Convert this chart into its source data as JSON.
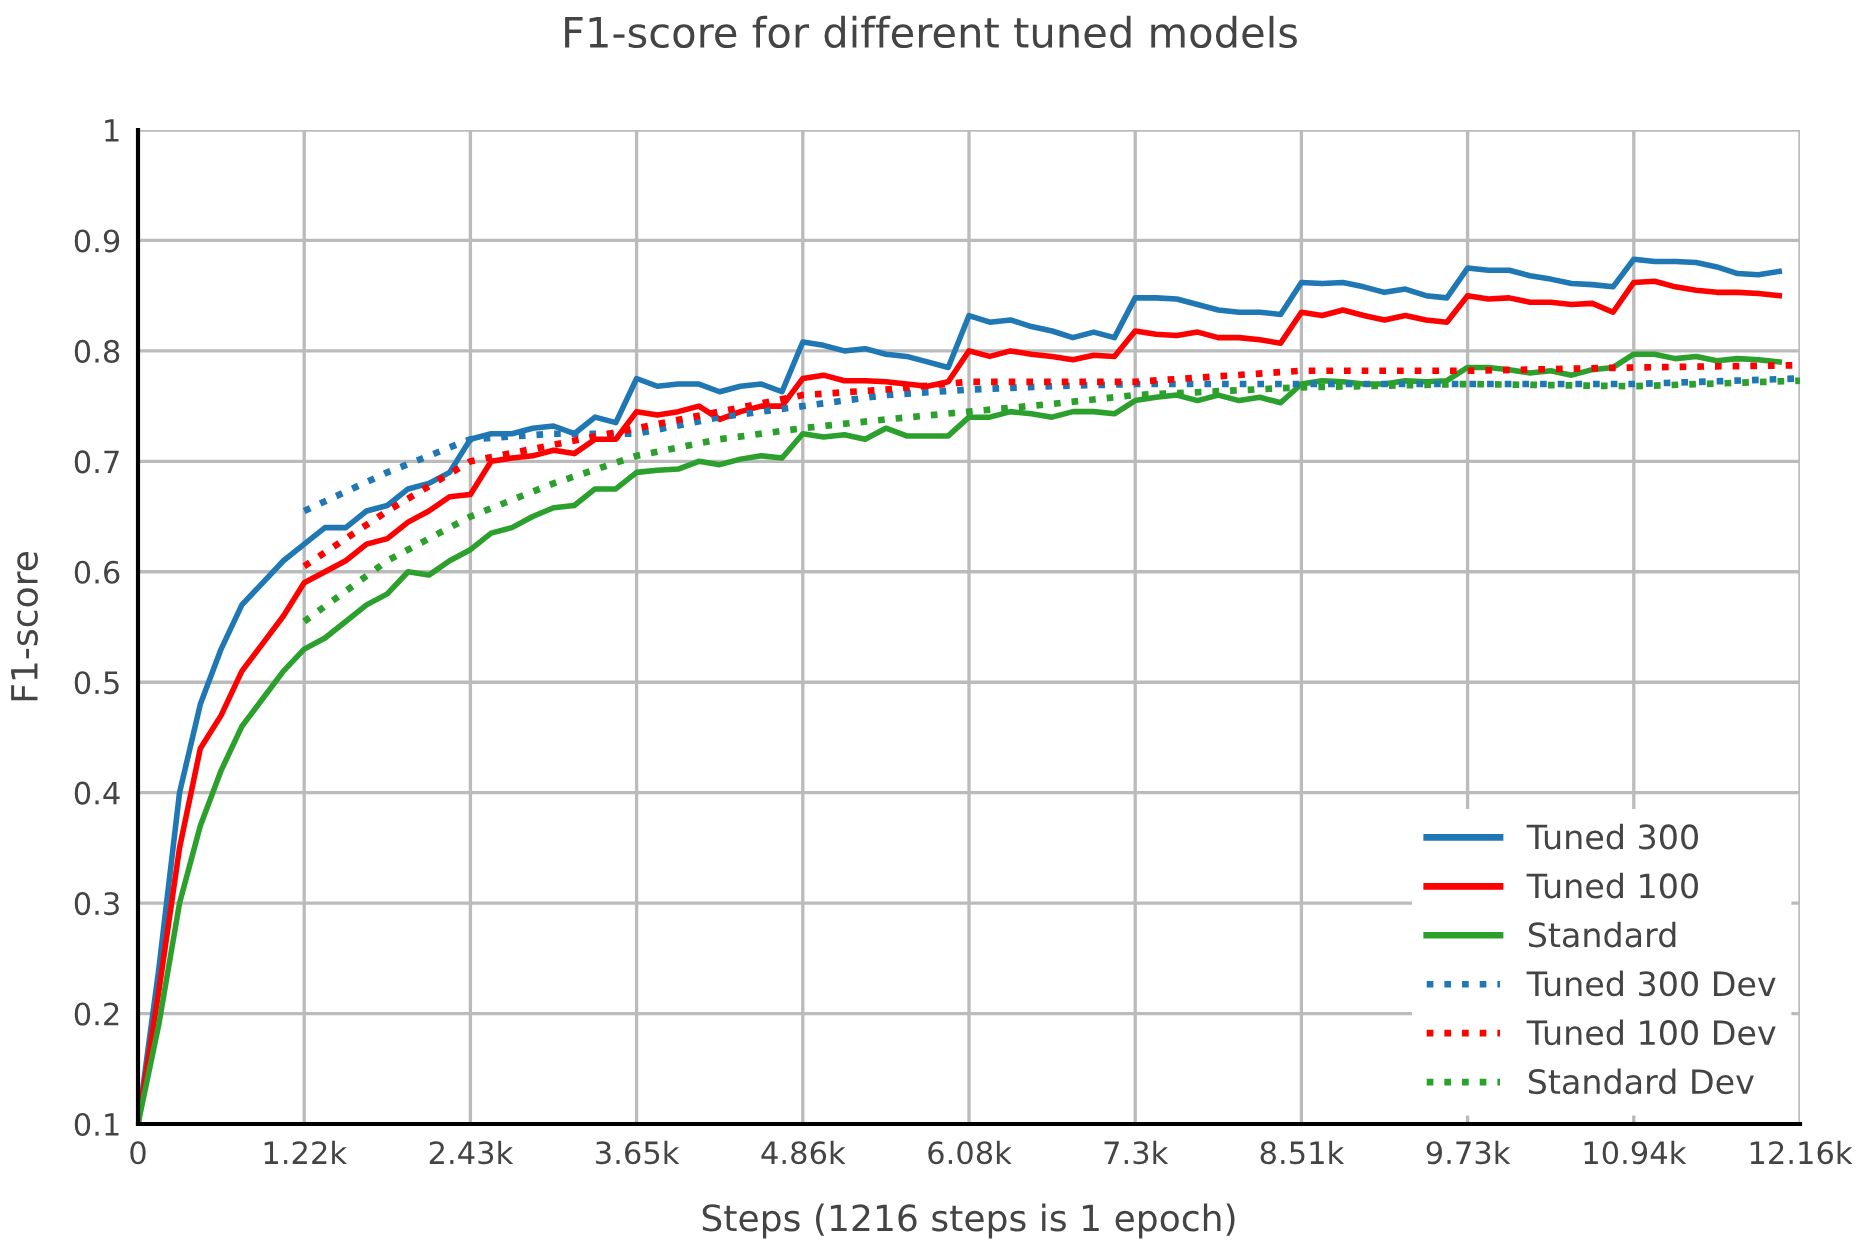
{
  "chart_data": {
    "type": "line",
    "title": "F1-score for different tuned models",
    "xlabel": "Steps (1216 steps is 1 epoch)",
    "ylabel": "F1-score",
    "x": [
      0,
      152,
      304,
      456,
      608,
      760,
      912,
      1064,
      1216,
      1368,
      1520,
      1672,
      1824,
      1976,
      2128,
      2280,
      2432,
      2584,
      2736,
      2888,
      3040,
      3192,
      3344,
      3496,
      3648,
      3800,
      3952,
      4104,
      4256,
      4408,
      4560,
      4712,
      4864,
      5016,
      5168,
      5320,
      5472,
      5624,
      5776,
      5928,
      6080,
      6232,
      6384,
      6536,
      6688,
      6840,
      6992,
      7144,
      7296,
      7448,
      7600,
      7752,
      7904,
      8056,
      8208,
      8360,
      8512,
      8664,
      8816,
      8968,
      9120,
      9272,
      9424,
      9576,
      9728,
      9880,
      10032,
      10184,
      10336,
      10488,
      10640,
      10792,
      10944,
      11096,
      11248,
      11400,
      11552,
      11704,
      11856,
      12008
    ],
    "series": [
      {
        "name": "Tuned 300",
        "color": "#1f77b4",
        "line_style": "solid",
        "values": [
          0.1,
          0.24,
          0.4,
          0.48,
          0.53,
          0.57,
          0.59,
          0.61,
          0.625,
          0.64,
          0.64,
          0.655,
          0.66,
          0.675,
          0.68,
          0.69,
          0.72,
          0.725,
          0.725,
          0.73,
          0.732,
          0.725,
          0.74,
          0.735,
          0.775,
          0.768,
          0.77,
          0.77,
          0.763,
          0.768,
          0.77,
          0.763,
          0.808,
          0.805,
          0.8,
          0.802,
          0.797,
          0.795,
          0.79,
          0.785,
          0.832,
          0.826,
          0.828,
          0.822,
          0.818,
          0.812,
          0.817,
          0.812,
          0.848,
          0.848,
          0.847,
          0.842,
          0.837,
          0.835,
          0.835,
          0.833,
          0.862,
          0.861,
          0.862,
          0.858,
          0.853,
          0.856,
          0.85,
          0.848,
          0.875,
          0.873,
          0.873,
          0.868,
          0.865,
          0.861,
          0.86,
          0.858,
          0.883,
          0.881,
          0.881,
          0.88,
          0.876,
          0.87,
          0.869,
          0.872
        ]
      },
      {
        "name": "Tuned 100",
        "color": "#ff0000",
        "line_style": "solid",
        "values": [
          0.1,
          0.22,
          0.35,
          0.44,
          0.47,
          0.51,
          0.535,
          0.56,
          0.59,
          0.6,
          0.61,
          0.625,
          0.63,
          0.645,
          0.655,
          0.668,
          0.67,
          0.7,
          0.703,
          0.705,
          0.71,
          0.707,
          0.72,
          0.72,
          0.745,
          0.742,
          0.745,
          0.75,
          0.738,
          0.745,
          0.75,
          0.75,
          0.775,
          0.778,
          0.773,
          0.773,
          0.772,
          0.77,
          0.768,
          0.772,
          0.8,
          0.795,
          0.8,
          0.797,
          0.795,
          0.792,
          0.796,
          0.795,
          0.818,
          0.815,
          0.814,
          0.817,
          0.812,
          0.812,
          0.81,
          0.807,
          0.835,
          0.832,
          0.837,
          0.832,
          0.828,
          0.832,
          0.828,
          0.826,
          0.85,
          0.847,
          0.848,
          0.844,
          0.844,
          0.842,
          0.843,
          0.835,
          0.862,
          0.863,
          0.858,
          0.855,
          0.853,
          0.853,
          0.852,
          0.85
        ]
      },
      {
        "name": "Standard",
        "color": "#2ca02c",
        "line_style": "solid",
        "values": [
          0.1,
          0.19,
          0.3,
          0.37,
          0.42,
          0.46,
          0.485,
          0.51,
          0.53,
          0.54,
          0.555,
          0.57,
          0.58,
          0.6,
          0.597,
          0.61,
          0.62,
          0.635,
          0.64,
          0.65,
          0.658,
          0.66,
          0.675,
          0.675,
          0.69,
          0.692,
          0.693,
          0.7,
          0.697,
          0.702,
          0.705,
          0.703,
          0.725,
          0.722,
          0.724,
          0.72,
          0.73,
          0.723,
          0.723,
          0.723,
          0.74,
          0.74,
          0.745,
          0.743,
          0.74,
          0.745,
          0.745,
          0.743,
          0.755,
          0.758,
          0.76,
          0.755,
          0.76,
          0.755,
          0.758,
          0.753,
          0.77,
          0.773,
          0.772,
          0.77,
          0.77,
          0.773,
          0.772,
          0.773,
          0.785,
          0.785,
          0.783,
          0.78,
          0.782,
          0.778,
          0.783,
          0.785,
          0.797,
          0.797,
          0.793,
          0.795,
          0.791,
          0.793,
          0.792,
          0.79
        ]
      },
      {
        "name": "Tuned 300 Dev",
        "color": "#1f77b4",
        "line_style": "dotted",
        "x": [
          1216,
          1824,
          2432,
          3040,
          3648,
          4256,
          4864,
          5472,
          6080,
          6688,
          7296,
          8512,
          9728,
          10944,
          12160
        ],
        "values": [
          0.655,
          0.69,
          0.72,
          0.725,
          0.725,
          0.74,
          0.75,
          0.76,
          0.765,
          0.768,
          0.77,
          0.77,
          0.77,
          0.77,
          0.775
        ]
      },
      {
        "name": "Tuned 100 Dev",
        "color": "#ff0000",
        "line_style": "dotted",
        "x": [
          1216,
          1824,
          2432,
          3040,
          3648,
          4256,
          4864,
          5472,
          6080,
          6688,
          7296,
          8512,
          9728,
          10944,
          12160
        ],
        "values": [
          0.605,
          0.655,
          0.7,
          0.715,
          0.73,
          0.745,
          0.76,
          0.765,
          0.772,
          0.772,
          0.772,
          0.782,
          0.782,
          0.785,
          0.787
        ]
      },
      {
        "name": "Standard Dev",
        "color": "#2ca02c",
        "line_style": "dotted",
        "x": [
          1216,
          1824,
          2432,
          3040,
          3648,
          4256,
          4864,
          5472,
          6080,
          6688,
          7296,
          8512,
          9728,
          10944,
          12160
        ],
        "values": [
          0.555,
          0.61,
          0.65,
          0.68,
          0.705,
          0.72,
          0.73,
          0.738,
          0.745,
          0.752,
          0.76,
          0.767,
          0.77,
          0.768,
          0.773
        ]
      }
    ],
    "xlim": [
      0,
      12160
    ],
    "ylim": [
      0.1,
      1
    ],
    "xticks": [
      0,
      {
        "value": 1216,
        "label": "1.22k"
      },
      {
        "value": 2432,
        "label": "2.43k"
      },
      {
        "value": 3648,
        "label": "3.65k"
      },
      {
        "value": 4864,
        "label": "4.86k"
      },
      {
        "value": 6080,
        "label": "6.08k"
      },
      {
        "value": 7296,
        "label": "7.3k"
      },
      {
        "value": 8512,
        "label": "8.51k"
      },
      {
        "value": 9728,
        "label": "9.73k"
      },
      {
        "value": 10944,
        "label": "10.94k"
      },
      {
        "value": 12160,
        "label": "12.16k"
      }
    ],
    "yticks": [
      0.1,
      0.2,
      0.3,
      0.4,
      0.5,
      0.6,
      0.7,
      0.8,
      0.9,
      1
    ],
    "grid": true,
    "legend": "bottom right"
  }
}
